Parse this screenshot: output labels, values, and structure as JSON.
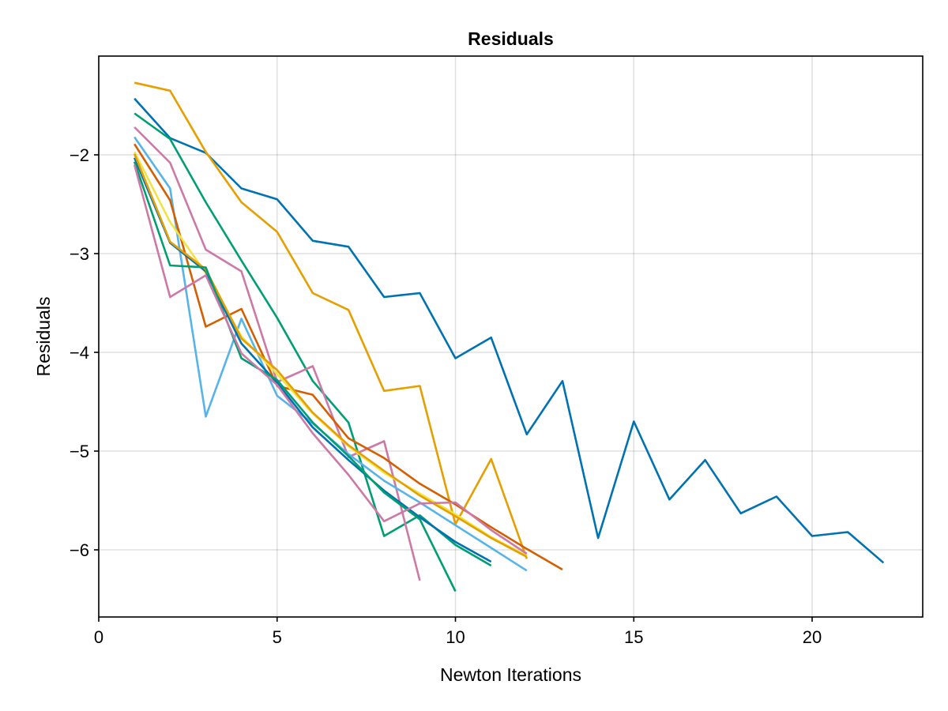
{
  "chart_data": {
    "type": "line",
    "title": "Residuals",
    "xlabel": "Newton Iterations",
    "ylabel": "Residuals",
    "xlim": [
      0,
      23.1
    ],
    "ylim": [
      -6.68,
      -1.0
    ],
    "xticks": [
      0,
      5,
      10,
      15,
      20
    ],
    "yticks": [
      -2,
      -3,
      -4,
      -5,
      -6
    ],
    "xtick_labels": [
      "0",
      "5",
      "10",
      "15",
      "20"
    ],
    "ytick_labels": [
      "−2",
      "−3",
      "−4",
      "−5",
      "−6"
    ],
    "grid": true,
    "series": [
      {
        "color": "#0072B2",
        "x": [
          1,
          2,
          3,
          4,
          5,
          6,
          7,
          8,
          9,
          10,
          11,
          12,
          13,
          14,
          15,
          16,
          17,
          18,
          19,
          20,
          21,
          22
        ],
        "y": [
          -1.43,
          -1.83,
          -1.98,
          -2.34,
          -2.45,
          -2.87,
          -2.93,
          -3.44,
          -3.4,
          -4.06,
          -3.85,
          -4.83,
          -4.29,
          -5.88,
          -4.7,
          -5.49,
          -5.09,
          -5.63,
          -5.46,
          -5.86,
          -5.82,
          -6.13
        ]
      },
      {
        "color": "#E69F00",
        "x": [
          1,
          2,
          3,
          4,
          5,
          6,
          7,
          8,
          9,
          10,
          11,
          12
        ],
        "y": [
          -1.27,
          -1.35,
          -1.97,
          -2.48,
          -2.78,
          -3.4,
          -3.57,
          -4.39,
          -4.34,
          -5.74,
          -5.08,
          -6.09
        ]
      },
      {
        "color": "#009E73",
        "x": [
          1,
          2,
          3,
          4,
          5,
          6,
          7,
          8,
          9,
          10,
          11
        ],
        "y": [
          -1.58,
          -1.84,
          -2.48,
          -3.07,
          -3.65,
          -4.29,
          -4.71,
          -5.86,
          -5.65,
          -5.95,
          -6.16
        ]
      },
      {
        "color": "#CC79A7",
        "x": [
          1,
          2,
          3,
          4,
          5,
          6,
          7,
          8,
          9
        ],
        "y": [
          -1.72,
          -2.08,
          -2.96,
          -3.18,
          -4.3,
          -4.14,
          -5.06,
          -4.9,
          -6.31
        ]
      },
      {
        "color": "#56B4E9",
        "x": [
          1,
          2,
          3,
          4,
          5,
          6,
          7,
          8,
          9,
          10,
          11,
          12
        ],
        "y": [
          -1.82,
          -2.34,
          -4.65,
          -3.66,
          -4.44,
          -4.72,
          -5.03,
          -5.3,
          -5.52,
          -5.75,
          -5.98,
          -6.21
        ]
      },
      {
        "color": "#D55E00",
        "x": [
          1,
          2,
          3,
          4,
          5,
          6,
          7,
          8,
          9,
          10,
          11,
          12,
          13
        ],
        "y": [
          -1.89,
          -2.46,
          -3.74,
          -3.56,
          -4.34,
          -4.43,
          -4.87,
          -5.07,
          -5.33,
          -5.54,
          -5.77,
          -5.99,
          -6.2
        ]
      },
      {
        "color": "#F0E442",
        "x": [
          1,
          2,
          3,
          4,
          5,
          6,
          7,
          8,
          9,
          10,
          11,
          12
        ],
        "y": [
          -1.97,
          -2.68,
          -3.2,
          -3.84,
          -4.22,
          -4.62,
          -4.95,
          -5.22,
          -5.43,
          -5.64,
          -5.87,
          -6.06
        ]
      },
      {
        "color": "#0072B2",
        "x": [
          1,
          2,
          3,
          4,
          5,
          6,
          7,
          8,
          9,
          10,
          11
        ],
        "y": [
          -2.03,
          -2.89,
          -3.18,
          -3.91,
          -4.31,
          -4.76,
          -5.09,
          -5.4,
          -5.67,
          -5.92,
          -6.12
        ]
      },
      {
        "color": "#E69F00",
        "x": [
          1,
          2,
          3,
          4,
          5,
          6,
          7,
          8,
          9,
          10,
          11,
          12
        ],
        "y": [
          -1.99,
          -2.88,
          -3.16,
          -3.86,
          -4.18,
          -4.61,
          -4.94,
          -5.2,
          -5.45,
          -5.66,
          -5.88,
          -6.07
        ]
      },
      {
        "color": "#009E73",
        "x": [
          1,
          2,
          3,
          4,
          5,
          6,
          7,
          8,
          9,
          10
        ],
        "y": [
          -2.07,
          -3.12,
          -3.14,
          -4.06,
          -4.28,
          -4.71,
          -5.05,
          -5.42,
          -5.69,
          -6.42
        ]
      },
      {
        "color": "#CC79A7",
        "x": [
          1,
          2,
          3,
          4,
          5,
          6,
          7,
          8,
          9,
          10,
          11,
          12
        ],
        "y": [
          -2.1,
          -3.44,
          -3.22,
          -4.01,
          -4.33,
          -4.82,
          -5.24,
          -5.71,
          -5.53,
          -5.52,
          -5.8,
          -6.04
        ]
      }
    ]
  }
}
